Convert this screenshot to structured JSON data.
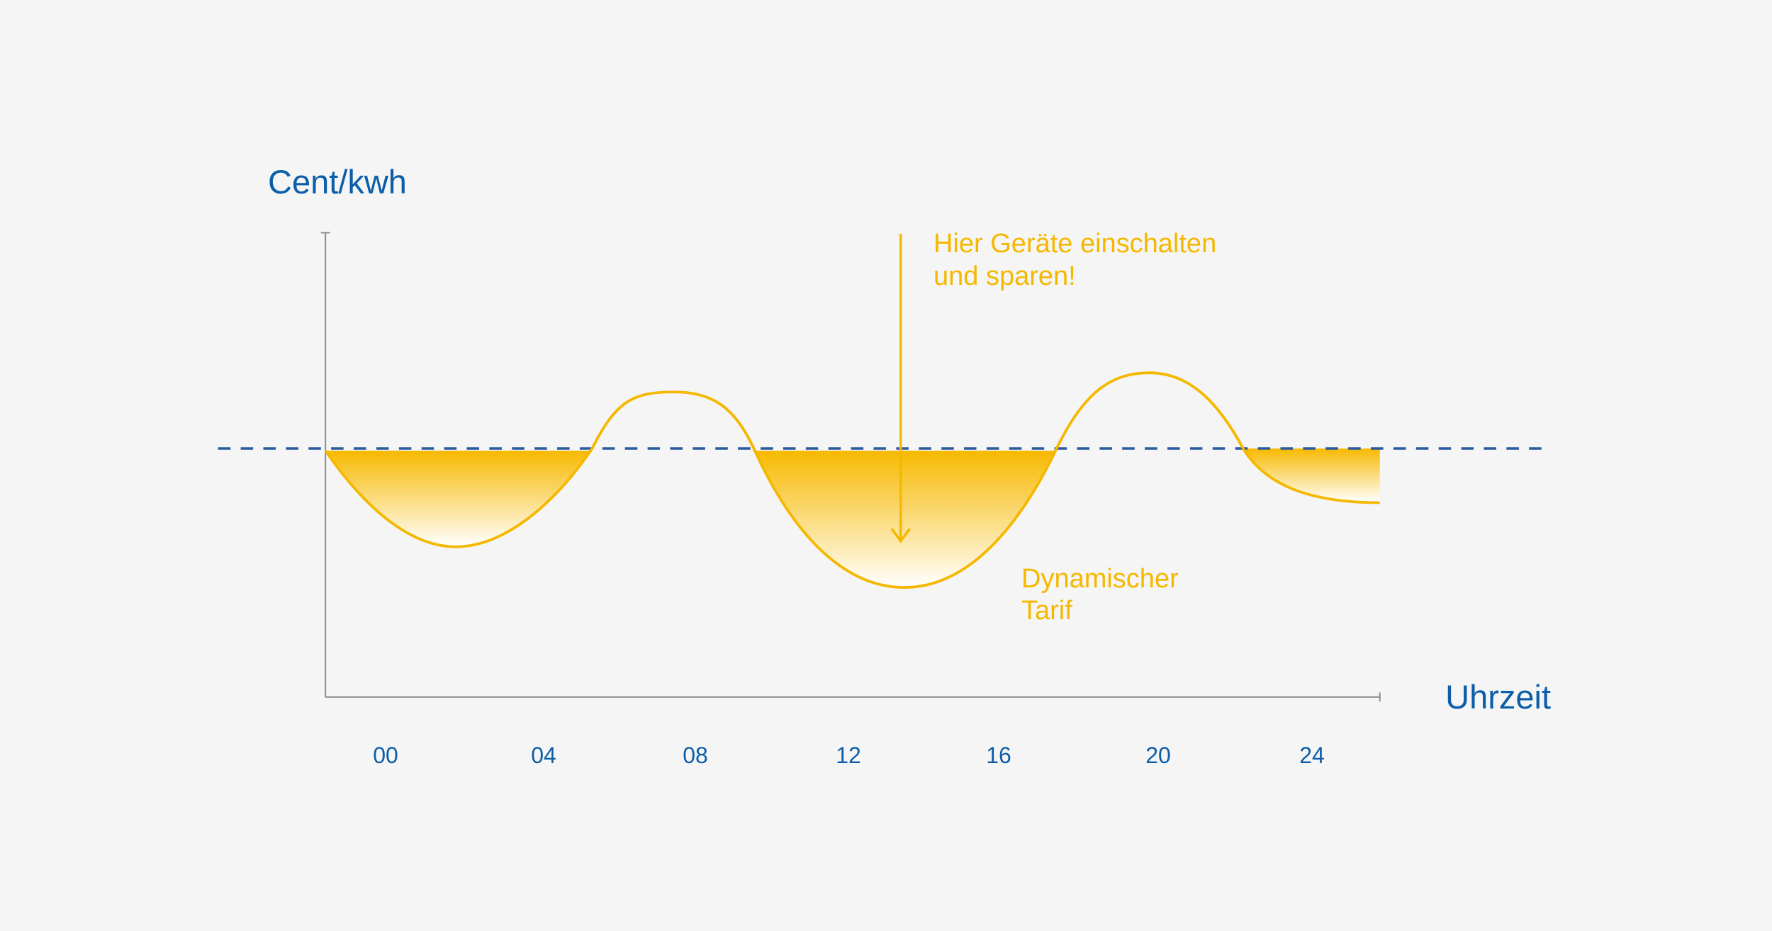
{
  "y_axis_label": "Cent/kwh",
  "x_axis_label": "Uhrzeit",
  "x_ticks": [
    "00",
    "04",
    "08",
    "12",
    "16",
    "20",
    "24"
  ],
  "annotations": {
    "hint": [
      "Hier Geräte einschalten",
      "und sparen!"
    ],
    "curve_label": [
      "Dynamischer",
      "Tarif"
    ]
  }
}
